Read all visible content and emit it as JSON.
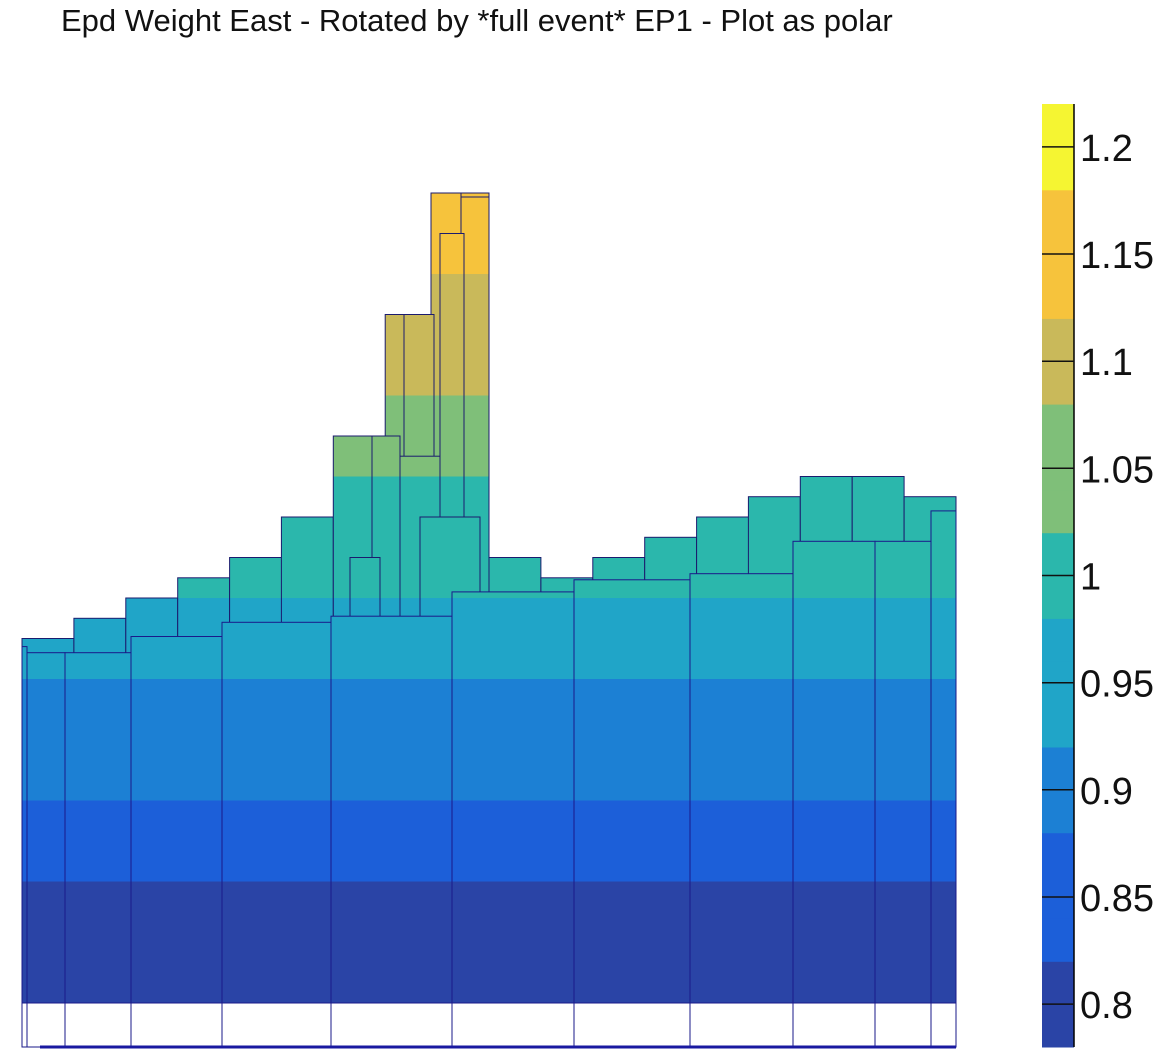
{
  "chart_data": {
    "type": "lego",
    "title": "Epd Weight East - Rotated by *full event* EP1 - Plot as polar",
    "xlabel": "",
    "ylabel": "",
    "zlim": [
      0.78,
      1.22
    ],
    "grid": false,
    "legend": "color palette on right",
    "palette": {
      "min": 0.78,
      "max": 1.22,
      "ticks": [
        0.8,
        0.85,
        0.9,
        0.95,
        1,
        1.05,
        1.1,
        1.15,
        1.2
      ],
      "tick_labels": [
        "0.8",
        "0.85",
        "0.9",
        "0.95",
        "1",
        "1.05",
        "1.1",
        "1.15",
        "1.2"
      ],
      "colors": [
        "#2a44a6",
        "#1c5fd9",
        "#1c80d4",
        "#20a5c8",
        "#2bb7ac",
        "#7fbf79",
        "#c9b95a",
        "#f6c33c",
        "#f5f532"
      ]
    },
    "front_row_phi_bins": [
      {
        "bin": 1,
        "value": 0.956
      },
      {
        "bin": 2,
        "value": 0.953
      },
      {
        "bin": 3,
        "value": 0.953
      },
      {
        "bin": 4,
        "value": 0.961
      },
      {
        "bin": 5,
        "value": 0.968
      },
      {
        "bin": 6,
        "value": 0.971
      },
      {
        "bin": 7,
        "value": 0.983
      },
      {
        "bin": 8,
        "value": 0.989
      },
      {
        "bin": 9,
        "value": 0.992
      },
      {
        "bin": 10,
        "value": 1.008
      },
      {
        "bin": 11,
        "value": 1.008
      },
      {
        "bin": 12,
        "value": 1.023
      }
    ],
    "peak": {
      "value": 1.18,
      "description_value_max": 1.18
    },
    "ridge_values": [
      0.96,
      0.97,
      0.98,
      0.99,
      1.0,
      1.02,
      1.06,
      1.12,
      1.18,
      1.0,
      0.99,
      1.0,
      1.01,
      1.02,
      1.03,
      1.04,
      1.04,
      1.03
    ]
  }
}
